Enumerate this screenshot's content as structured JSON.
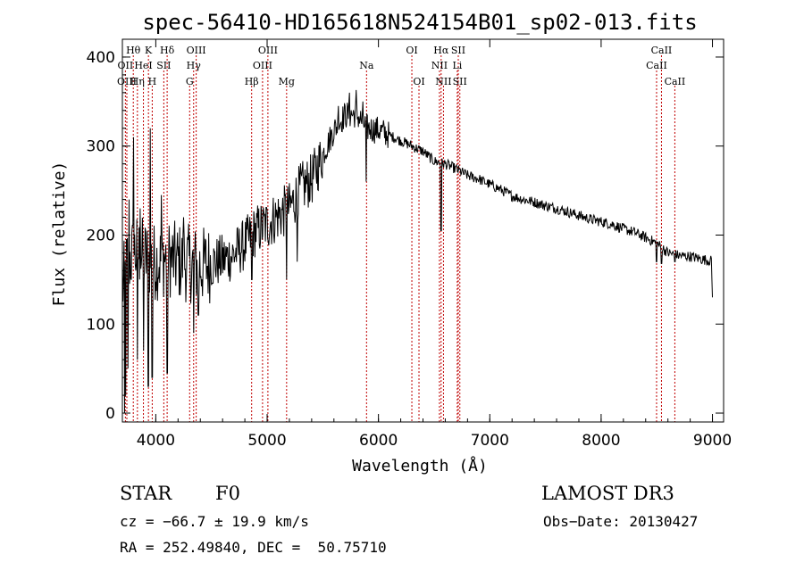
{
  "chart_data": {
    "type": "line",
    "title": "spec-56410-HD165618N524154B01_sp02-013.fits",
    "xlabel": "Wavelength (Å)",
    "ylabel": "Flux (relative)",
    "xlim": [
      3700,
      9100
    ],
    "ylim": [
      -10,
      420
    ],
    "xticks": [
      4000,
      5000,
      6000,
      7000,
      8000,
      9000
    ],
    "yticks": [
      0,
      100,
      200,
      300,
      400
    ],
    "series": [
      {
        "name": "flux",
        "anchors": [
          [
            3700,
            140
          ],
          [
            3750,
            170
          ],
          [
            3800,
            180
          ],
          [
            3850,
            180
          ],
          [
            3900,
            175
          ],
          [
            3950,
            172
          ],
          [
            4000,
            170
          ],
          [
            4100,
            175
          ],
          [
            4200,
            170
          ],
          [
            4300,
            168
          ],
          [
            4400,
            165
          ],
          [
            4500,
            168
          ],
          [
            4600,
            172
          ],
          [
            4700,
            178
          ],
          [
            4800,
            190
          ],
          [
            4900,
            205
          ],
          [
            5000,
            212
          ],
          [
            5100,
            222
          ],
          [
            5200,
            230
          ],
          [
            5300,
            252
          ],
          [
            5400,
            262
          ],
          [
            5500,
            290
          ],
          [
            5600,
            318
          ],
          [
            5700,
            335
          ],
          [
            5800,
            336
          ],
          [
            5900,
            320
          ],
          [
            6000,
            318
          ],
          [
            6100,
            312
          ],
          [
            6200,
            306
          ],
          [
            6300,
            300
          ],
          [
            6400,
            294
          ],
          [
            6500,
            283
          ],
          [
            6600,
            280
          ],
          [
            6700,
            274
          ],
          [
            6800,
            267
          ],
          [
            6900,
            263
          ],
          [
            7000,
            257
          ],
          [
            7100,
            251
          ],
          [
            7200,
            244
          ],
          [
            7300,
            240
          ],
          [
            7400,
            237
          ],
          [
            7500,
            233
          ],
          [
            7600,
            230
          ],
          [
            7700,
            226
          ],
          [
            7800,
            222
          ],
          [
            7900,
            218
          ],
          [
            8000,
            215
          ],
          [
            8100,
            212
          ],
          [
            8200,
            207
          ],
          [
            8300,
            203
          ],
          [
            8400,
            197
          ],
          [
            8500,
            191
          ],
          [
            8600,
            180
          ],
          [
            8700,
            177
          ],
          [
            8800,
            176
          ],
          [
            8900,
            173
          ],
          [
            8990,
            171
          ],
          [
            9000,
            130
          ]
        ],
        "dips": [
          [
            3720,
            0
          ],
          [
            3730,
            20
          ],
          [
            3750,
            50
          ],
          [
            3835,
            60
          ],
          [
            3890,
            70
          ],
          [
            3934,
            30
          ],
          [
            3968,
            40
          ],
          [
            4102,
            45
          ],
          [
            4340,
            90
          ],
          [
            4383,
            110
          ],
          [
            4861,
            150
          ],
          [
            5175,
            150
          ],
          [
            5270,
            170
          ],
          [
            5890,
            260
          ],
          [
            6563,
            205
          ],
          [
            8498,
            170
          ],
          [
            8542,
            168
          ],
          [
            8662,
            170
          ]
        ],
        "spikes": [
          [
            3760,
            240
          ],
          [
            3800,
            310
          ],
          [
            3860,
            230
          ],
          [
            3950,
            320
          ],
          [
            4050,
            245
          ],
          [
            4250,
            220
          ],
          [
            5640,
            345
          ],
          [
            5740,
            360
          ],
          [
            5800,
            363
          ],
          [
            5860,
            350
          ]
        ]
      }
    ],
    "lines": [
      {
        "label": "Hθ",
        "wl": 3798,
        "row": 0
      },
      {
        "label": "OII",
        "wl": 3727,
        "row": 1
      },
      {
        "label": "OIII",
        "wl": 3740,
        "row": 2
      },
      {
        "label": "K",
        "wl": 3934,
        "row": 0
      },
      {
        "label": "HeI",
        "wl": 3889,
        "row": 1
      },
      {
        "label": "Hη",
        "wl": 3835,
        "row": 2
      },
      {
        "label": "Hδ",
        "wl": 4102,
        "row": 0
      },
      {
        "label": "SII",
        "wl": 4072,
        "row": 1
      },
      {
        "label": "H",
        "wl": 3968,
        "row": 2
      },
      {
        "label": "OIII",
        "wl": 4363,
        "row": 0
      },
      {
        "label": "Hγ",
        "wl": 4340,
        "row": 1
      },
      {
        "label": "G",
        "wl": 4304,
        "row": 2
      },
      {
        "label": "Hβ",
        "wl": 4861,
        "row": 2
      },
      {
        "label": "OIII",
        "wl": 5007,
        "row": 0
      },
      {
        "label": "OIII",
        "wl": 4959,
        "row": 1
      },
      {
        "label": "Mg",
        "wl": 5175,
        "row": 2
      },
      {
        "label": "Na",
        "wl": 5893,
        "row": 1
      },
      {
        "label": "OI",
        "wl": 6300,
        "row": 0
      },
      {
        "label": "OI",
        "wl": 6364,
        "row": 2
      },
      {
        "label": "Hα",
        "wl": 6563,
        "row": 0
      },
      {
        "label": "NII",
        "wl": 6548,
        "row": 1
      },
      {
        "label": "NII",
        "wl": 6584,
        "row": 2
      },
      {
        "label": "SII",
        "wl": 6717,
        "row": 0
      },
      {
        "label": "Li",
        "wl": 6708,
        "row": 1
      },
      {
        "label": "SII",
        "wl": 6731,
        "row": 2
      },
      {
        "label": "CaII",
        "wl": 8542,
        "row": 0
      },
      {
        "label": "CaII",
        "wl": 8498,
        "row": 1
      },
      {
        "label": "CaII",
        "wl": 8662,
        "row": 2
      }
    ]
  },
  "footer": {
    "object_type": "STAR",
    "spectral_class": "F0",
    "survey": "LAMOST DR3",
    "cz": "cz = −66.7 ± 19.9 km/s",
    "obs_date": "Obs−Date: 20130427",
    "coords": "RA = 252.49840, DEC =  50.75710"
  },
  "colors": {
    "line_marker": "#c00000",
    "spectrum": "#000000"
  }
}
